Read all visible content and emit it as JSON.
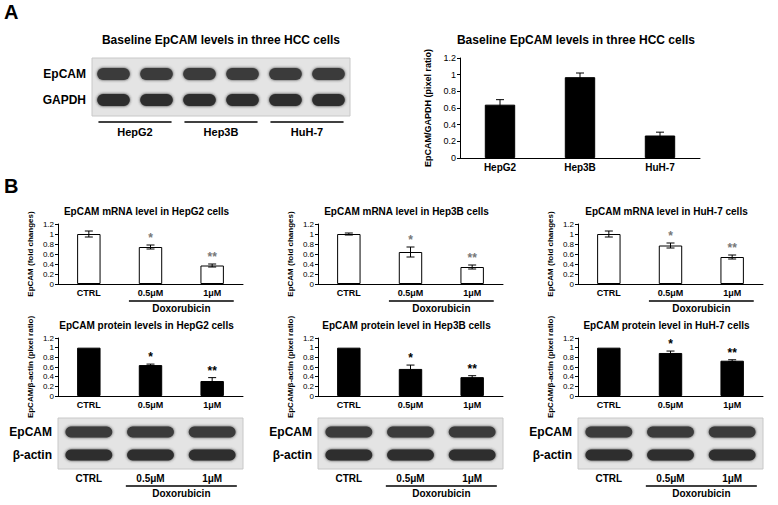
{
  "panel_labels": [
    "A",
    "B"
  ],
  "chart_data": [
    {
      "type": "bar",
      "title": "Baseline EpCAM levels in three HCC cells",
      "ylabel": "EpCAM/GAPDH (pixel ratio)",
      "categories": [
        "HepG2",
        "Hep3B",
        "HuH-7"
      ],
      "values": [
        0.64,
        0.97,
        0.27
      ],
      "errors": [
        0.06,
        0.05,
        0.04
      ],
      "color": "#000000",
      "ylim": [
        0,
        1.2
      ],
      "yticks": [
        0,
        0.2,
        0.4,
        0.6,
        0.8,
        1,
        1.2
      ],
      "grid": false
    },
    {
      "type": "bar",
      "title": "EpCAM mRNA level in HepG2 cells",
      "ylabel": "EpCAM (fold changes)",
      "categories": [
        "CTRL",
        "0.5μM",
        "1μM"
      ],
      "values": [
        1.0,
        0.74,
        0.37
      ],
      "errors": [
        0.06,
        0.04,
        0.03
      ],
      "significance": [
        null,
        "*",
        "**"
      ],
      "group": {
        "label": "Doxorubicin",
        "categories": [
          "0.5μM",
          "1μM"
        ]
      },
      "color": "#ffffff",
      "ylim": [
        0,
        1.2
      ],
      "yticks": [
        0,
        0.2,
        0.4,
        0.6,
        0.8,
        1,
        1.2
      ],
      "grid": false
    },
    {
      "type": "bar",
      "title": "EpCAM mRNA level in Hep3B cells",
      "ylabel": "EpCAM (fold changes)",
      "categories": [
        "CTRL",
        "0.5μM",
        "1μM"
      ],
      "values": [
        1.0,
        0.64,
        0.34
      ],
      "errors": [
        0.02,
        0.1,
        0.04
      ],
      "significance": [
        null,
        "*",
        "**"
      ],
      "group": {
        "label": "Doxorubicin",
        "categories": [
          "0.5μM",
          "1μM"
        ]
      },
      "color": "#ffffff",
      "ylim": [
        0,
        1.2
      ],
      "yticks": [
        0,
        0.2,
        0.4,
        0.6,
        0.8,
        1,
        1.2
      ],
      "grid": false
    },
    {
      "type": "bar",
      "title": "EpCAM mRNA level in HuH-7 cells",
      "ylabel": "EpCAM (fold changes)",
      "categories": [
        "CTRL",
        "0.5μM",
        "1μM"
      ],
      "values": [
        1.0,
        0.77,
        0.54
      ],
      "errors": [
        0.06,
        0.05,
        0.04
      ],
      "significance": [
        null,
        "*",
        "**"
      ],
      "group": {
        "label": "Doxorubicin",
        "categories": [
          "0.5μM",
          "1μM"
        ]
      },
      "color": "#ffffff",
      "ylim": [
        0,
        1.2
      ],
      "yticks": [
        0,
        0.2,
        0.4,
        0.6,
        0.8,
        1,
        1.2
      ],
      "grid": false
    },
    {
      "type": "bar",
      "title": "EpCAM protein levels in HepG2 cells",
      "ylabel": "EpCAM/β-actin (pixel ratio)",
      "categories": [
        "CTRL",
        "0.5μM",
        "1μM"
      ],
      "values": [
        1.0,
        0.64,
        0.31
      ],
      "errors": [
        0,
        0.02,
        0.07
      ],
      "significance": [
        null,
        "*",
        "**"
      ],
      "color": "#000000",
      "ylim": [
        0,
        1.2
      ],
      "yticks": [
        0,
        0.2,
        0.4,
        0.6,
        0.8,
        1,
        1.2
      ],
      "grid": false
    },
    {
      "type": "bar",
      "title": "EpCAM protein level in Hep3B cells",
      "ylabel": "EpCAM/β-actin (pixel ratio)",
      "categories": [
        "CTRL",
        "0.5μM",
        "1μM"
      ],
      "values": [
        1.0,
        0.56,
        0.39
      ],
      "errors": [
        0,
        0.08,
        0.03
      ],
      "significance": [
        null,
        "*",
        "**"
      ],
      "color": "#000000",
      "ylim": [
        0,
        1.2
      ],
      "yticks": [
        0,
        0.2,
        0.4,
        0.6,
        0.8,
        1,
        1.2
      ],
      "grid": false
    },
    {
      "type": "bar",
      "title": "EpCAM protein level in HuH-7 cells",
      "ylabel": "EpCAM/β-actin (pixel ratio)",
      "categories": [
        "CTRL",
        "0.5μM",
        "1μM"
      ],
      "values": [
        1.0,
        0.89,
        0.73
      ],
      "errors": [
        0,
        0.04,
        0.02
      ],
      "significance": [
        null,
        "*",
        "**"
      ],
      "color": "#000000",
      "ylim": [
        0,
        1.2
      ],
      "yticks": [
        0,
        0.2,
        0.4,
        0.6,
        0.8,
        1,
        1.2
      ],
      "grid": false
    }
  ],
  "blots": [
    {
      "title": "Baseline EpCAM levels in three HCC cells",
      "rows": [
        "EpCAM",
        "GAPDH"
      ],
      "lane_groups": [
        "HepG2",
        "Hep3B",
        "HuH-7"
      ]
    },
    {
      "rows": [
        "EpCAM",
        "β-actin"
      ],
      "lanes": [
        "CTRL",
        "0.5μM",
        "1μM"
      ],
      "group": {
        "label": "Doxorubicin",
        "lanes": [
          "0.5μM",
          "1μM"
        ]
      }
    },
    {
      "rows": [
        "EpCAM",
        "β-actin"
      ],
      "lanes": [
        "CTRL",
        "0.5μM",
        "1μM"
      ],
      "group": {
        "label": "Doxorubicin",
        "lanes": [
          "0.5μM",
          "1μM"
        ]
      }
    },
    {
      "rows": [
        "EpCAM",
        "β-actin"
      ],
      "lanes": [
        "CTRL",
        "0.5μM",
        "1μM"
      ],
      "group": {
        "label": "Doxorubicin",
        "lanes": [
          "0.5μM",
          "1μM"
        ]
      }
    }
  ]
}
